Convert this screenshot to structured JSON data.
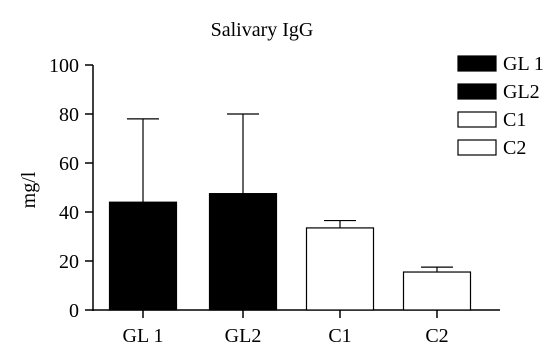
{
  "chart_data": {
    "type": "bar",
    "title": "Salivary IgG",
    "xlabel": "",
    "ylabel": "mg/l",
    "ylim": [
      0,
      100
    ],
    "yticks": [
      0,
      20,
      40,
      60,
      80,
      100
    ],
    "categories": [
      "GL 1",
      "GL2",
      "C1",
      "C2"
    ],
    "values": [
      44,
      47.5,
      33.5,
      15.5
    ],
    "error_upper": [
      78,
      80,
      36.5,
      17.5
    ],
    "bar_fill": [
      "#000000",
      "#000000",
      "#ffffff",
      "#ffffff"
    ],
    "bar_stroke": "#000000",
    "legend": {
      "position": "top-right",
      "entries": [
        {
          "label": "GL 1",
          "fill": "#000000"
        },
        {
          "label": "GL2",
          "fill": "#000000"
        },
        {
          "label": "C1",
          "fill": "#ffffff"
        },
        {
          "label": "C2",
          "fill": "#ffffff"
        }
      ]
    },
    "grid": false
  }
}
